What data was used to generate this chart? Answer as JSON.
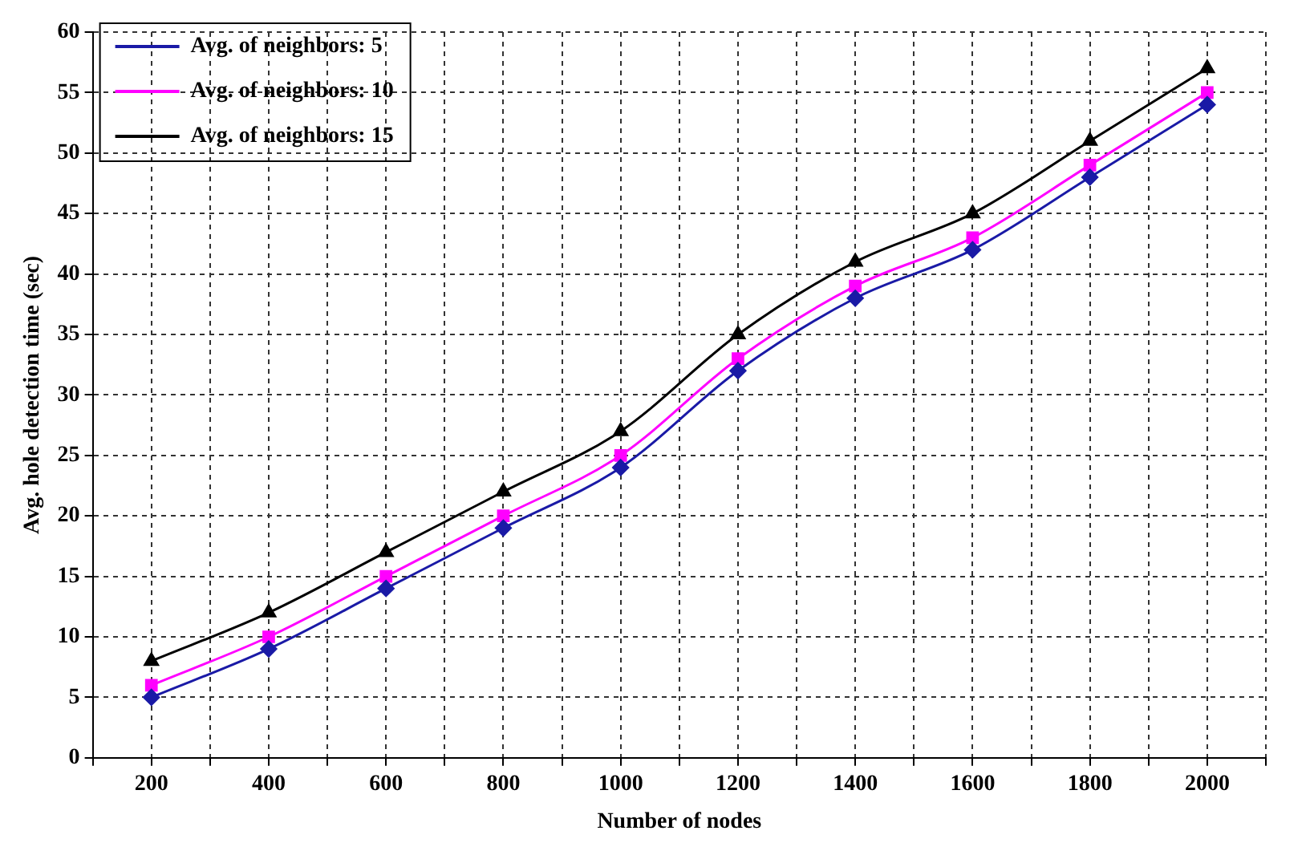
{
  "chart_data": {
    "type": "line",
    "xlabel": "Number of nodes",
    "ylabel": "Avg. hole detection time (sec)",
    "x": [
      200,
      400,
      600,
      800,
      1000,
      1200,
      1400,
      1600,
      1800,
      2000
    ],
    "series": [
      {
        "name": "Avg. of neighbors: 5",
        "color": "#1a1aa6",
        "marker": "diamond",
        "values": [
          5,
          9,
          14,
          19,
          24,
          32,
          38,
          42,
          48,
          54
        ]
      },
      {
        "name": "Avg. of neighbors: 10",
        "color": "#ff00ff",
        "marker": "square",
        "values": [
          6,
          10,
          15,
          20,
          25,
          33,
          39,
          43,
          49,
          55
        ]
      },
      {
        "name": "Avg. of neighbors: 15",
        "color": "#000000",
        "marker": "triangle",
        "values": [
          8,
          12,
          17,
          22,
          27,
          35,
          41,
          45,
          51,
          57
        ]
      }
    ],
    "xlim": [
      100,
      2100
    ],
    "xticks": [
      {
        "value": 100,
        "label": null
      },
      200,
      {
        "value": 300,
        "label": null
      },
      400,
      {
        "value": 500,
        "label": null
      },
      600,
      {
        "value": 700,
        "label": null
      },
      800,
      {
        "value": 900,
        "label": null
      },
      1000,
      {
        "value": 1100,
        "label": null
      },
      1200,
      {
        "value": 1300,
        "label": null
      },
      1400,
      {
        "value": 1500,
        "label": null
      },
      1600,
      {
        "value": 1700,
        "label": null
      },
      1800,
      {
        "value": 1900,
        "label": null
      },
      2000,
      {
        "value": 2100,
        "label": null
      }
    ],
    "ylim": [
      0,
      60
    ],
    "yticks": [
      0,
      5,
      10,
      15,
      20,
      25,
      30,
      35,
      40,
      45,
      50,
      55,
      60
    ],
    "grid": true,
    "legend": "top left",
    "line_style": "solid"
  }
}
